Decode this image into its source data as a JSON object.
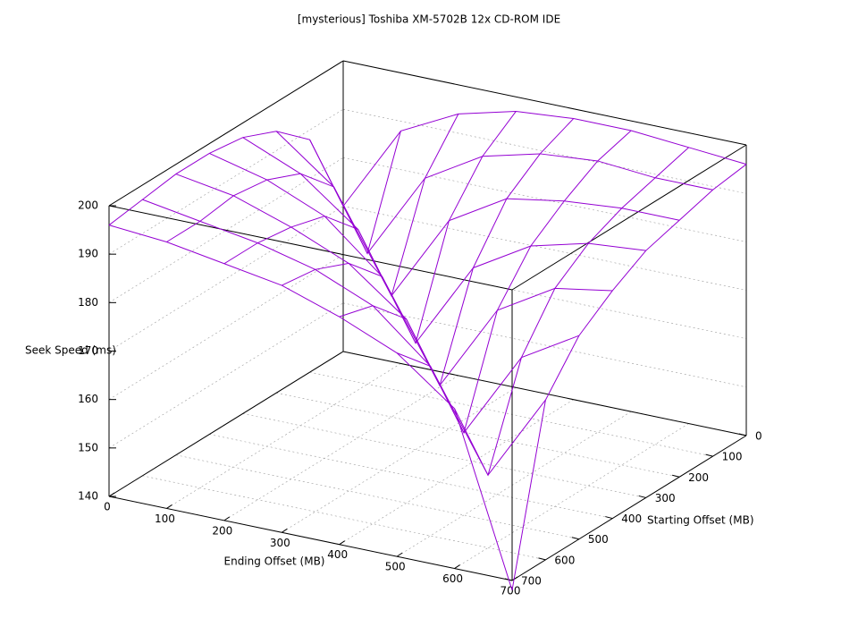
{
  "chart_data": {
    "type": "surface",
    "title": "[mysterious] Toshiba XM-5702B 12x CD-ROM IDE",
    "x_label": "Ending Offset (MB)",
    "y_label": "Starting Offset (MB)",
    "z_label": "Seek Speed (ms)",
    "x": [
      0,
      100,
      200,
      300,
      400,
      500,
      600,
      700
    ],
    "y": [
      0,
      100,
      200,
      300,
      400,
      500,
      600,
      700
    ],
    "z": [
      [
        170,
        188,
        194,
        197,
        198,
        198,
        197,
        196
      ],
      [
        188,
        167,
        185,
        192,
        195,
        196,
        195,
        195
      ],
      [
        194,
        185,
        165,
        183,
        190,
        192,
        193,
        193
      ],
      [
        197,
        192,
        183,
        162,
        180,
        187,
        190,
        191
      ],
      [
        198,
        195,
        190,
        180,
        160,
        178,
        185,
        187
      ],
      [
        198,
        196,
        192,
        187,
        178,
        157,
        175,
        182
      ],
      [
        197,
        195,
        193,
        190,
        185,
        175,
        155,
        173
      ],
      [
        196,
        195,
        193,
        191,
        187,
        182,
        173,
        138
      ]
    ],
    "xlim": [
      0,
      700
    ],
    "ylim": [
      0,
      700
    ],
    "zlim": [
      140,
      200
    ],
    "xticks": [
      0,
      100,
      200,
      300,
      400,
      500,
      600,
      700
    ],
    "yticks": [
      0,
      100,
      200,
      300,
      400,
      500,
      600,
      700
    ],
    "zticks": [
      140,
      150,
      160,
      170,
      180,
      190,
      200
    ],
    "color": "#9400d3",
    "grid": true
  }
}
